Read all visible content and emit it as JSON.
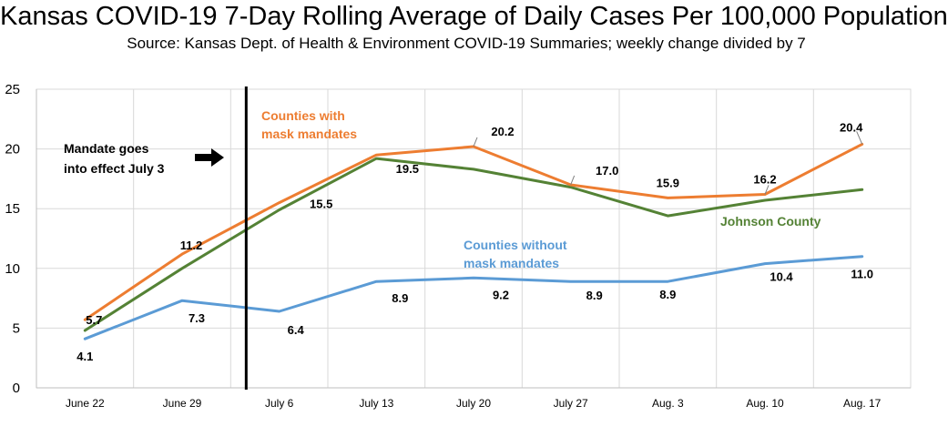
{
  "chart_data": {
    "type": "line",
    "title": "Kansas COVID-19 7-Day Rolling Average of Daily Cases Per 100,000 Population",
    "subtitle": "Source: Kansas Dept. of Health & Environment COVID-19 Summaries; weekly change divided by 7",
    "categories": [
      "June 22",
      "June 29",
      "July 6",
      "July 13",
      "July 20",
      "July 27",
      "Aug. 3",
      "Aug. 10",
      "Aug. 17"
    ],
    "ylim": [
      0,
      25
    ],
    "yticks": [
      0,
      5,
      10,
      15,
      20,
      25
    ],
    "grid": true,
    "series": [
      {
        "name": "Counties with mask mandates",
        "color": "#ED7D31",
        "values": [
          5.7,
          11.2,
          15.5,
          19.5,
          20.2,
          17.0,
          15.9,
          16.2,
          20.4
        ],
        "labels": [
          "5.7",
          "11.2",
          "15.5",
          "19.5",
          "20.2",
          "17.0",
          "15.9",
          "16.2",
          "20.4"
        ]
      },
      {
        "name": "Johnson County",
        "color": "#548235",
        "values": [
          4.8,
          10.0,
          14.9,
          19.2,
          18.3,
          16.8,
          14.4,
          15.7,
          16.6
        ],
        "labels": []
      },
      {
        "name": "Counties without mask mandates",
        "color": "#5B9BD5",
        "values": [
          4.1,
          7.3,
          6.4,
          8.9,
          9.2,
          8.9,
          8.9,
          10.4,
          11.0
        ],
        "labels": [
          "4.1",
          "7.3",
          "6.4",
          "8.9",
          "9.2",
          "8.9",
          "8.9",
          "10.4",
          "11.0"
        ]
      }
    ],
    "mandate_marker": {
      "text_line1": "Mandate goes",
      "text_line2": "into effect July 3",
      "x_position": 2.0
    },
    "series_annotations": {
      "with_line1": "Counties with",
      "with_line2": "mask mandates",
      "without_line1": "Counties without",
      "without_line2": "mask mandates",
      "johnson": "Johnson County"
    }
  }
}
